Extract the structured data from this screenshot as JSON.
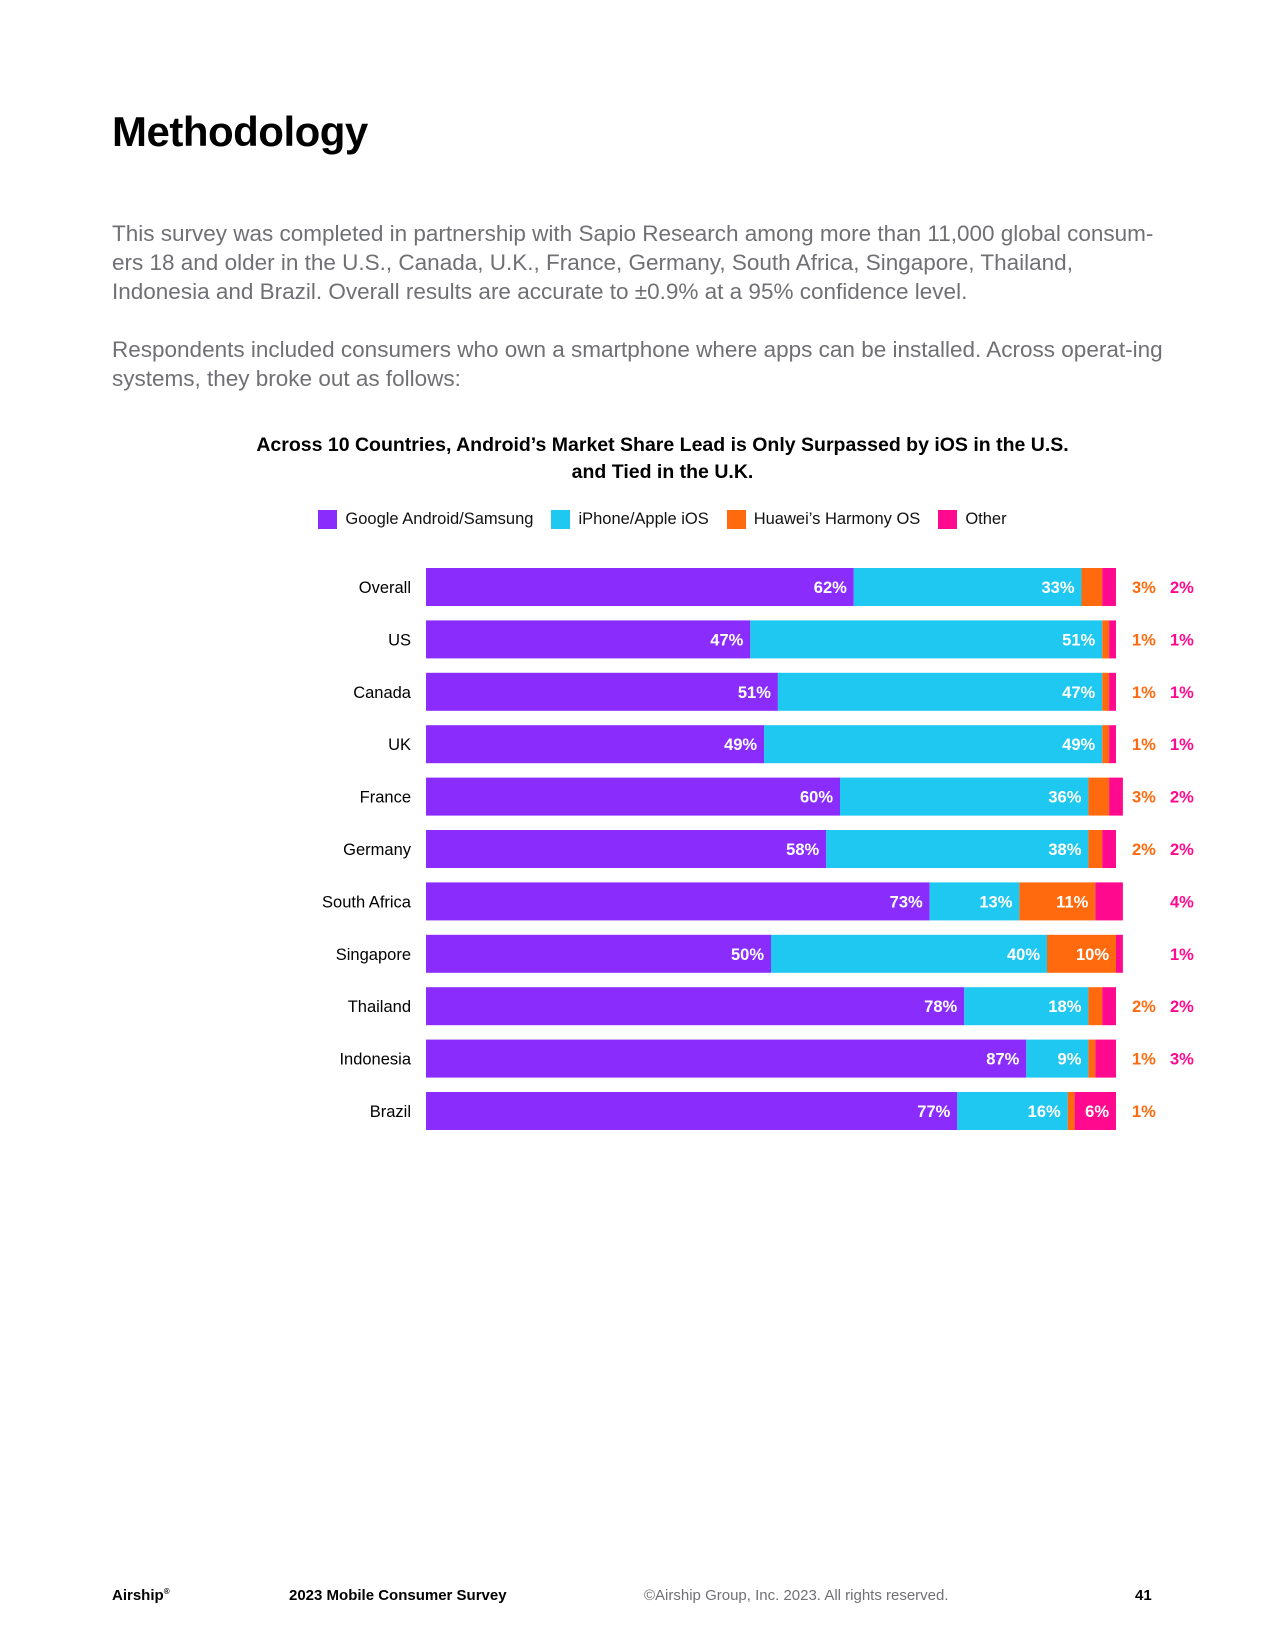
{
  "page": {
    "title": "Methodology",
    "intro_paragraphs": [
      "This survey was completed in partnership with Sapio Research among more than 11,000 global consum-ers 18 and older in the U.S., Canada, U.K., France, Germany, South Africa, Singapore, Thailand, Indonesia and Brazil. Overall results are accurate to ±0.9% at a 95% confidence level.",
      "Respondents included consumers who own a smartphone where apps can be installed. Across operat-ing systems, they broke out as follows:"
    ]
  },
  "chart_data": {
    "type": "bar",
    "orientation": "horizontal",
    "stacked": true,
    "title_lines": [
      "Across 10 Countries, Android’s Market Share Lead is Only Surpassed by iOS in the U.S.",
      "and Tied in the U.K."
    ],
    "legend_position": "top",
    "categories": [
      "Overall",
      "US",
      "Canada",
      "UK",
      "France",
      "Germany",
      "South Africa",
      "Singapore",
      "Thailand",
      "Indonesia",
      "Brazil"
    ],
    "series": [
      {
        "name": "Google Android/Samsung",
        "color": "#8a2dfc",
        "values": [
          62,
          47,
          51,
          49,
          60,
          58,
          73,
          50,
          78,
          87,
          77
        ]
      },
      {
        "name": "iPhone/Apple iOS",
        "color": "#1ec8f0",
        "values": [
          33,
          51,
          47,
          49,
          36,
          38,
          13,
          40,
          18,
          9,
          16
        ]
      },
      {
        "name": "Huawei’s Harmony OS",
        "color": "#ff6a0e",
        "values": [
          3,
          1,
          1,
          1,
          3,
          2,
          11,
          10,
          2,
          1,
          1
        ]
      },
      {
        "name": "Other",
        "color": "#ff0a8e",
        "values": [
          2,
          1,
          1,
          1,
          2,
          2,
          4,
          1,
          2,
          3,
          6
        ]
      }
    ],
    "value_suffix": "%",
    "xlim": [
      0,
      100
    ],
    "grid": false
  },
  "footer": {
    "brand": "Airship",
    "brand_mark": "®",
    "report": "2023 Mobile Consumer Survey",
    "copyright": "©Airship Group, Inc. 2023. All rights reserved.",
    "page_number": "41"
  }
}
